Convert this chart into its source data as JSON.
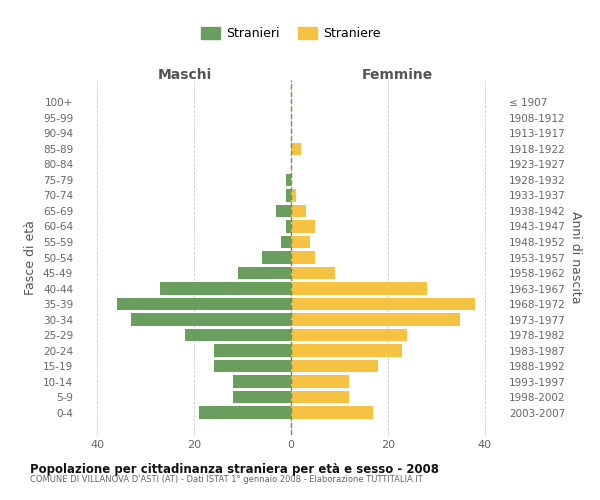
{
  "age_groups": [
    "0-4",
    "5-9",
    "10-14",
    "15-19",
    "20-24",
    "25-29",
    "30-34",
    "35-39",
    "40-44",
    "45-49",
    "50-54",
    "55-59",
    "60-64",
    "65-69",
    "70-74",
    "75-79",
    "80-84",
    "85-89",
    "90-94",
    "95-99",
    "100+"
  ],
  "birth_years": [
    "2003-2007",
    "1998-2002",
    "1993-1997",
    "1988-1992",
    "1983-1987",
    "1978-1982",
    "1973-1977",
    "1968-1972",
    "1963-1967",
    "1958-1962",
    "1953-1957",
    "1948-1952",
    "1943-1947",
    "1938-1942",
    "1933-1937",
    "1928-1932",
    "1923-1927",
    "1918-1922",
    "1913-1917",
    "1908-1912",
    "≤ 1907"
  ],
  "maschi": [
    19,
    12,
    12,
    16,
    16,
    22,
    33,
    36,
    27,
    11,
    6,
    2,
    1,
    3,
    1,
    1,
    0,
    0,
    0,
    0,
    0
  ],
  "femmine": [
    17,
    12,
    12,
    18,
    23,
    24,
    35,
    38,
    28,
    9,
    5,
    4,
    5,
    3,
    1,
    0,
    0,
    2,
    0,
    0,
    0
  ],
  "color_maschi": "#6a9e5e",
  "color_femmine": "#f5c242",
  "title": "Popolazione per cittadinanza straniera per età e sesso - 2008",
  "subtitle": "COMUNE DI VILLANOVA D'ASTI (AT) - Dati ISTAT 1° gennaio 2008 - Elaborazione TUTTITALIA.IT",
  "ylabel_left": "Fasce di età",
  "ylabel_right": "Anni di nascita",
  "xlabel_left": "Maschi",
  "xlabel_right": "Femmine",
  "legend_maschi": "Stranieri",
  "legend_femmine": "Straniere",
  "xlim": 44,
  "background_color": "#ffffff",
  "grid_color": "#cccccc",
  "dashed_line_color": "#888844"
}
